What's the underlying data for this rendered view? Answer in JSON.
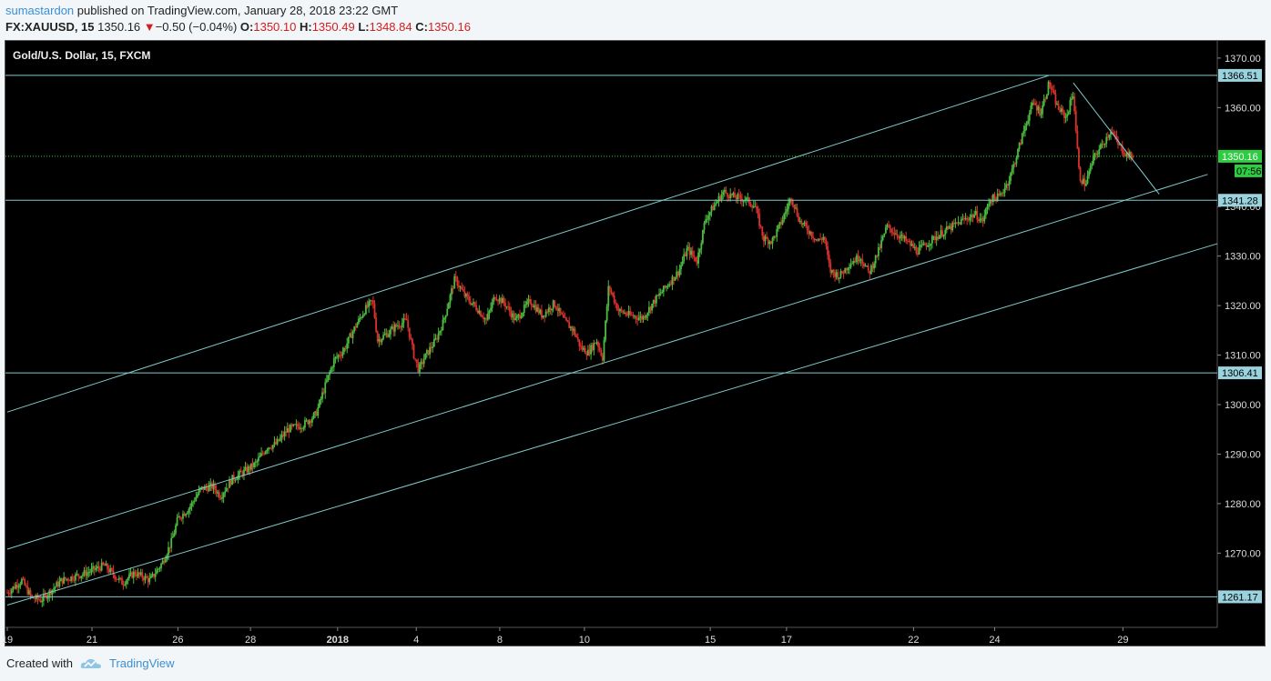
{
  "header": {
    "author": "sumastardon",
    "published_text": "published on TradingView.com, January 28, 2018 23:22 GMT",
    "symbol": "FX:XAUUSD, 15",
    "last": "1350.16",
    "change_arrow": "▼",
    "change": "−0.50 (−0.04%)",
    "o_label": "O:",
    "o_value": "1350.10",
    "h_label": "H:",
    "h_value": "1350.49",
    "l_label": "L:",
    "l_value": "1348.84",
    "c_label": "C:",
    "c_value": "1350.16"
  },
  "footer": {
    "created_with": "Created with",
    "brand": "TradingView",
    "brand_icon": "tradingview-cloud-icon"
  },
  "colors": {
    "background": "#000000",
    "candle_up": "#4cbb3f",
    "candle_down": "#d9312c",
    "line": "#7fc9c9",
    "current_price": "#2ed12e",
    "tag_bg": "#9ad3de",
    "price_tag_bg": "#2ecc40"
  },
  "chart_data": {
    "type": "candlestick",
    "title": "Gold/U.S. Dollar, 15, FXCM",
    "ylim": [
      1255,
      1372
    ],
    "y_ticks": [
      1270,
      1280,
      1290,
      1300,
      1310,
      1320,
      1330,
      1340,
      1360,
      1370
    ],
    "y_tick_labels": [
      "1270.00",
      "1280.00",
      "1290.00",
      "1300.00",
      "1310.00",
      "1320.00",
      "1330.00",
      "1340.00",
      "1360.00",
      "1370.00"
    ],
    "x_ticks": [
      {
        "label": "19",
        "t": 0
      },
      {
        "label": "21",
        "t": 0.07
      },
      {
        "label": "26",
        "t": 0.141
      },
      {
        "label": "28",
        "t": 0.201
      },
      {
        "label": "2018",
        "t": 0.273
      },
      {
        "label": "4",
        "t": 0.338
      },
      {
        "label": "8",
        "t": 0.407
      },
      {
        "label": "10",
        "t": 0.477
      },
      {
        "label": "15",
        "t": 0.581
      },
      {
        "label": "17",
        "t": 0.644
      },
      {
        "label": "22",
        "t": 0.749
      },
      {
        "label": "24",
        "t": 0.816
      },
      {
        "label": "29",
        "t": 0.922
      }
    ],
    "horizontal_levels": [
      {
        "value": 1366.51,
        "label": "1366.51"
      },
      {
        "value": 1341.28,
        "label": "1341.28"
      },
      {
        "value": 1306.41,
        "label": "1306.41"
      },
      {
        "value": 1261.17,
        "label": "1261.17"
      }
    ],
    "current_price": {
      "value": 1350.16,
      "label": "1350.16",
      "countdown": "07:56"
    },
    "trend_lines": [
      {
        "t1": 0,
        "p1": 1298.5,
        "t2": 0.861,
        "p2": 1366.5
      },
      {
        "t1": 0,
        "p1": 1270.8,
        "t2": 0.992,
        "p2": 1346.5
      },
      {
        "t1": 0,
        "p1": 1259.5,
        "t2": 1.0,
        "p2": 1332.5
      },
      {
        "t1": 0.881,
        "p1": 1365.0,
        "t2": 0.952,
        "p2": 1342.5
      }
    ],
    "path": [
      [
        0.0,
        1262.0
      ],
      [
        0.012,
        1264.5
      ],
      [
        0.02,
        1261.0
      ],
      [
        0.028,
        1260.5
      ],
      [
        0.045,
        1264.5
      ],
      [
        0.065,
        1266.0
      ],
      [
        0.08,
        1267.5
      ],
      [
        0.095,
        1264.0
      ],
      [
        0.105,
        1266.0
      ],
      [
        0.118,
        1264.5
      ],
      [
        0.128,
        1268.0
      ],
      [
        0.136,
        1272.5
      ],
      [
        0.141,
        1277.0
      ],
      [
        0.15,
        1279.0
      ],
      [
        0.16,
        1283.0
      ],
      [
        0.17,
        1283.5
      ],
      [
        0.176,
        1281.5
      ],
      [
        0.186,
        1285.0
      ],
      [
        0.196,
        1286.5
      ],
      [
        0.205,
        1288.0
      ],
      [
        0.215,
        1291.5
      ],
      [
        0.222,
        1292.0
      ],
      [
        0.232,
        1295.0
      ],
      [
        0.245,
        1296.0
      ],
      [
        0.255,
        1298.0
      ],
      [
        0.263,
        1304.0
      ],
      [
        0.27,
        1309.0
      ],
      [
        0.278,
        1311.0
      ],
      [
        0.286,
        1315.0
      ],
      [
        0.295,
        1319.0
      ],
      [
        0.302,
        1321.0
      ],
      [
        0.306,
        1313.0
      ],
      [
        0.315,
        1314.5
      ],
      [
        0.322,
        1316.0
      ],
      [
        0.33,
        1317.0
      ],
      [
        0.336,
        1310.0
      ],
      [
        0.34,
        1307.0
      ],
      [
        0.346,
        1310.0
      ],
      [
        0.354,
        1313.0
      ],
      [
        0.36,
        1316.5
      ],
      [
        0.365,
        1321.0
      ],
      [
        0.37,
        1325.5
      ],
      [
        0.378,
        1322.0
      ],
      [
        0.388,
        1319.5
      ],
      [
        0.396,
        1317.0
      ],
      [
        0.403,
        1322.0
      ],
      [
        0.411,
        1320.5
      ],
      [
        0.42,
        1317.0
      ],
      [
        0.432,
        1321.0
      ],
      [
        0.442,
        1318.0
      ],
      [
        0.452,
        1320.5
      ],
      [
        0.46,
        1317.0
      ],
      [
        0.468,
        1315.0
      ],
      [
        0.474,
        1311.5
      ],
      [
        0.48,
        1310.5
      ],
      [
        0.487,
        1313.0
      ],
      [
        0.492,
        1309.5
      ],
      [
        0.497,
        1324.0
      ],
      [
        0.505,
        1319.0
      ],
      [
        0.515,
        1318.0
      ],
      [
        0.525,
        1317.5
      ],
      [
        0.535,
        1321.0
      ],
      [
        0.545,
        1324.0
      ],
      [
        0.555,
        1327.0
      ],
      [
        0.562,
        1331.5
      ],
      [
        0.57,
        1329.0
      ],
      [
        0.577,
        1337.5
      ],
      [
        0.585,
        1340.5
      ],
      [
        0.592,
        1343.0
      ],
      [
        0.6,
        1342.0
      ],
      [
        0.61,
        1341.5
      ],
      [
        0.618,
        1340.0
      ],
      [
        0.625,
        1333.5
      ],
      [
        0.632,
        1333.0
      ],
      [
        0.64,
        1337.0
      ],
      [
        0.648,
        1342.0
      ],
      [
        0.655,
        1337.0
      ],
      [
        0.663,
        1335.0
      ],
      [
        0.67,
        1333.0
      ],
      [
        0.675,
        1334.0
      ],
      [
        0.68,
        1327.0
      ],
      [
        0.688,
        1326.0
      ],
      [
        0.696,
        1328.5
      ],
      [
        0.705,
        1330.0
      ],
      [
        0.712,
        1326.5
      ],
      [
        0.72,
        1331.0
      ],
      [
        0.727,
        1336.0
      ],
      [
        0.735,
        1334.5
      ],
      [
        0.743,
        1333.0
      ],
      [
        0.752,
        1331.0
      ],
      [
        0.76,
        1332.5
      ],
      [
        0.768,
        1334.0
      ],
      [
        0.778,
        1335.5
      ],
      [
        0.788,
        1337.0
      ],
      [
        0.8,
        1338.5
      ],
      [
        0.806,
        1337.0
      ],
      [
        0.812,
        1341.5
      ],
      [
        0.82,
        1342.0
      ],
      [
        0.828,
        1345.5
      ],
      [
        0.835,
        1351.0
      ],
      [
        0.842,
        1357.0
      ],
      [
        0.848,
        1361.0
      ],
      [
        0.854,
        1359.0
      ],
      [
        0.861,
        1365.0
      ],
      [
        0.868,
        1360.0
      ],
      [
        0.875,
        1358.0
      ],
      [
        0.881,
        1363.0
      ],
      [
        0.886,
        1346.0
      ],
      [
        0.891,
        1344.5
      ],
      [
        0.898,
        1350.0
      ],
      [
        0.905,
        1352.5
      ],
      [
        0.912,
        1355.5
      ],
      [
        0.918,
        1352.5
      ],
      [
        0.925,
        1350.5
      ],
      [
        0.93,
        1350.16
      ]
    ]
  }
}
